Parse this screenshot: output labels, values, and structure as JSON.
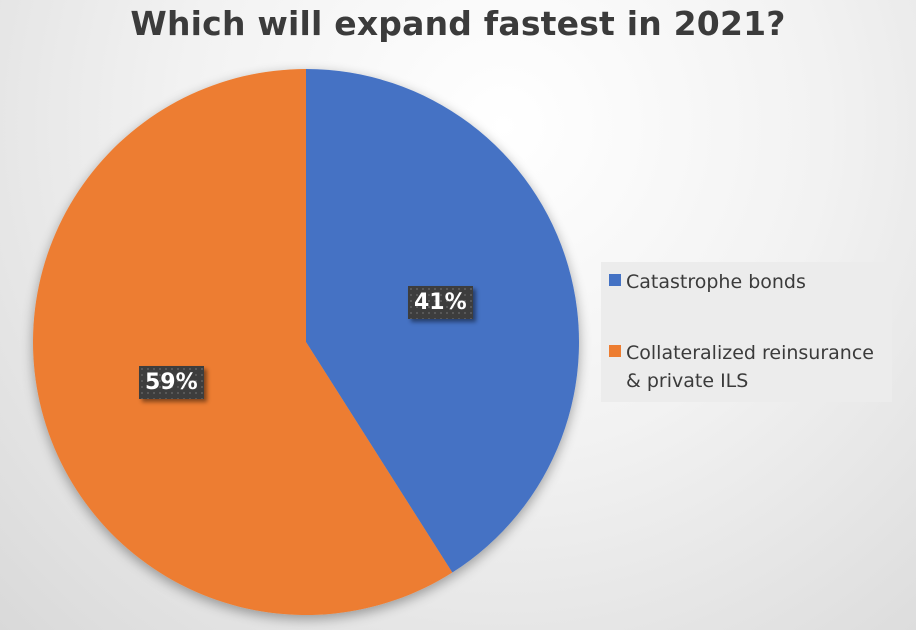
{
  "chart_data": {
    "type": "pie",
    "title": "Which will expand fastest in 2021?",
    "categories": [
      "Catastrophe bonds",
      "Collateralized reinsurance & private ILS"
    ],
    "values": [
      41,
      59
    ],
    "labels": [
      "41%",
      "59%"
    ],
    "colors": [
      "#4472c4",
      "#ed7d31"
    ],
    "legend_position": "right",
    "start_angle": "12 o'clock, clockwise"
  },
  "title": "Which will expand fastest in 2021?",
  "legend": {
    "items": [
      {
        "label": "Catastrophe bonds",
        "color": "#4472c4"
      },
      {
        "label": "Collateralized reinsurance & private ILS",
        "color": "#ed7d31"
      }
    ]
  },
  "data_labels": [
    "41%",
    "59%"
  ]
}
